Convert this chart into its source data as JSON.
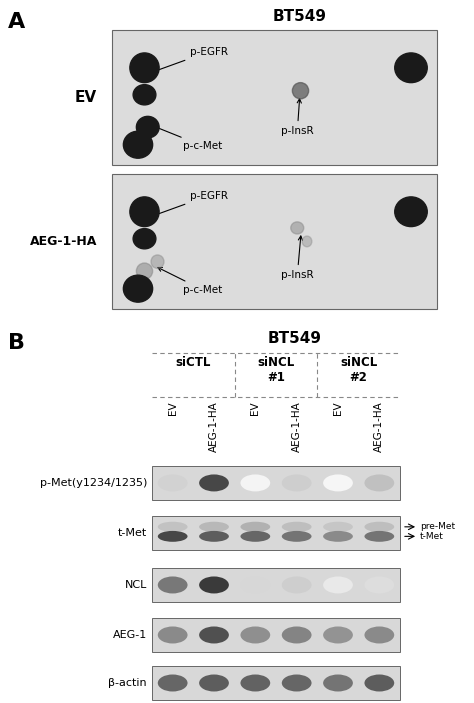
{
  "panel_A_title": "BT549",
  "panel_B_title": "BT549",
  "panel_A_label": "A",
  "panel_B_label": "B",
  "EV_label": "EV",
  "AEG1_label": "AEG-1-HA",
  "dot_bg_color": "#dcdcdc",
  "dot_color_dark": "#1a1a1a",
  "dot_color_gray": "#888888",
  "wb_bg_color": "#d8d8d8",
  "font_color": "#000000",
  "bg_white": "#ffffff",
  "row_labels": [
    "p-Met(y1234/1235)",
    "t-Met",
    "NCL",
    "AEG-1",
    "β-actin"
  ],
  "col_labels": [
    "EV",
    "AEG-1-HA",
    "EV",
    "AEG-1-HA",
    "EV",
    "AEG-1-HA"
  ],
  "group_labels": [
    "siCTL",
    "siNCL\n#1",
    "siNCL\n#2"
  ],
  "side_labels_tMet": [
    "pre-Met",
    "t-Met"
  ],
  "p_met_intensities": [
    0.2,
    0.82,
    0.05,
    0.22,
    0.04,
    0.28
  ],
  "t_met_upper": [
    0.3,
    0.35,
    0.38,
    0.32,
    0.28,
    0.32
  ],
  "t_met_lower": [
    0.82,
    0.72,
    0.68,
    0.62,
    0.52,
    0.62
  ],
  "ncl_intensities": [
    0.6,
    0.88,
    0.18,
    0.22,
    0.1,
    0.15
  ],
  "aeg1_intensities": [
    0.52,
    0.78,
    0.5,
    0.55,
    0.48,
    0.52
  ],
  "bactin_intensities": [
    0.68,
    0.72,
    0.7,
    0.68,
    0.62,
    0.72
  ]
}
